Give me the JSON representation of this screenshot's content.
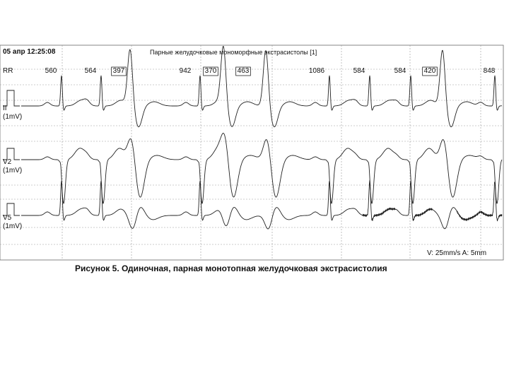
{
  "header": {
    "datetime": "05 апр 12:25:08",
    "title": "Парные желудочковые мономорфные экстрасистолы  [1]"
  },
  "rr": {
    "label": "RR",
    "intervals": [
      {
        "text": "560",
        "boxed": false
      },
      {
        "text": "564",
        "boxed": false
      },
      {
        "text": "397",
        "boxed": true
      },
      {
        "text": "942",
        "boxed": false
      },
      {
        "text": "370",
        "boxed": true
      },
      {
        "text": "463",
        "boxed": true
      },
      {
        "text": "1086",
        "boxed": false
      },
      {
        "text": "584",
        "boxed": false
      },
      {
        "text": "584",
        "boxed": false
      },
      {
        "text": "420",
        "boxed": true
      },
      {
        "text": "848",
        "boxed": false
      }
    ]
  },
  "leads": [
    {
      "name": "II",
      "scale": "(1mV)"
    },
    {
      "name": "V2",
      "scale": "(1mV)"
    },
    {
      "name": "V5",
      "scale": "(1mV)"
    }
  ],
  "footer": "V: 25mm/s  A: 5mm",
  "caption": "Рисунок 5. Одиночная, парная монотопная желудочковая экстрасистолия"
}
